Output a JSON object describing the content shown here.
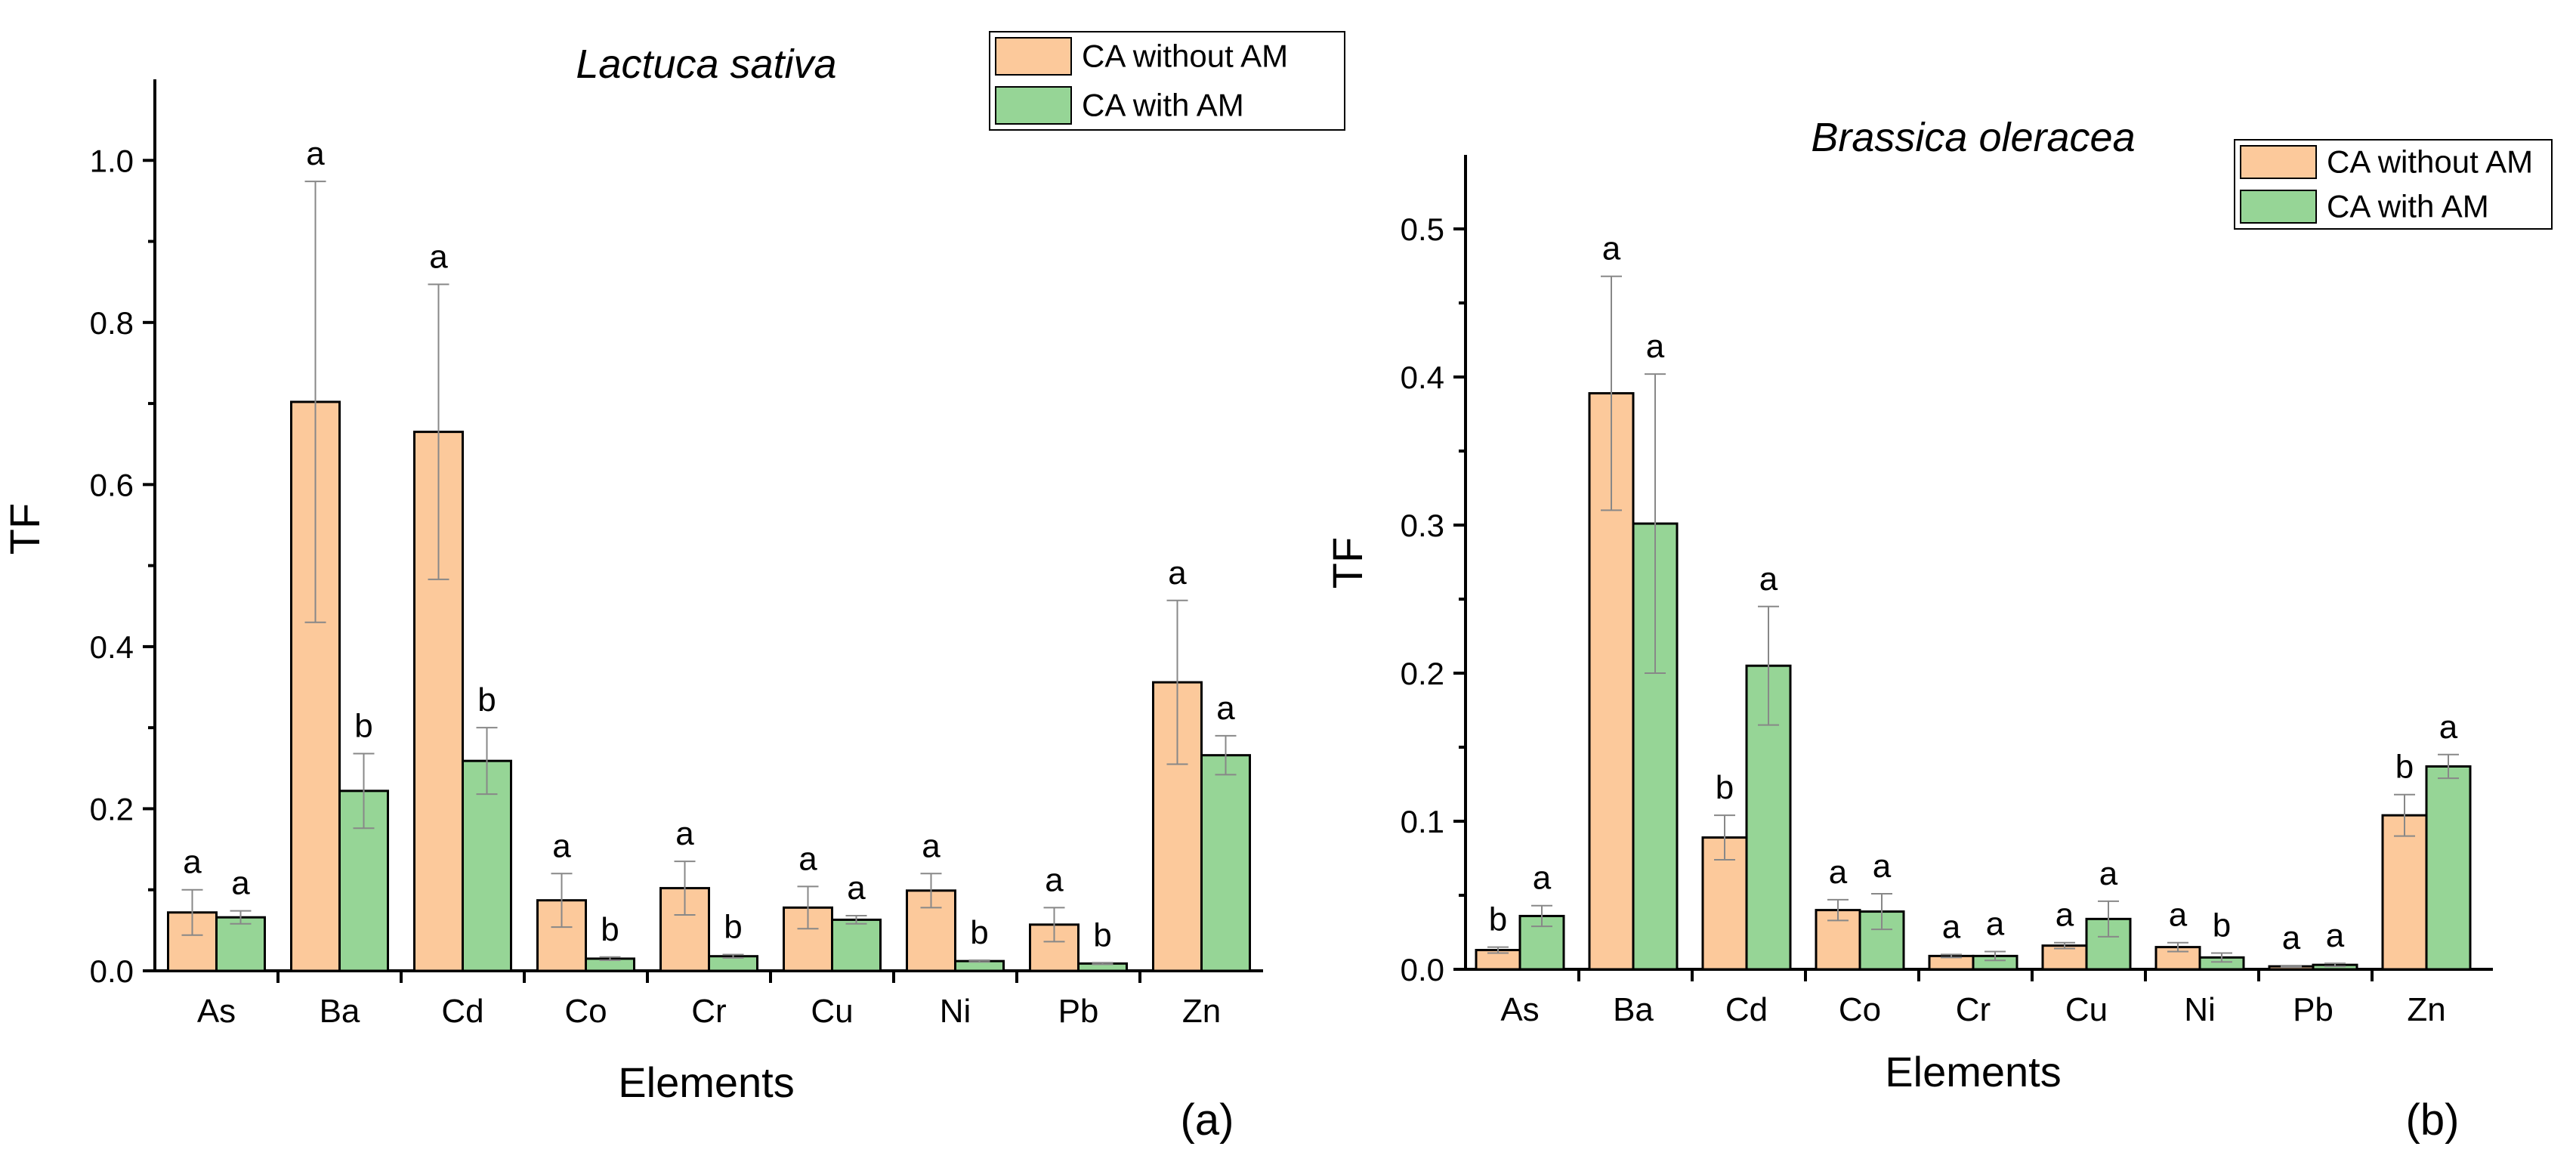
{
  "colors": {
    "without_am": "#fcc99b",
    "with_am": "#96d596",
    "bar_edge": "#000000",
    "error_bar": "#888888"
  },
  "chart_data": [
    {
      "type": "bar",
      "panel_label": "(a)",
      "title": "Lactuca sativa",
      "xlabel": "Elements",
      "ylabel": "TF",
      "categories": [
        "As",
        "Ba",
        "Cd",
        "Co",
        "Cr",
        "Cu",
        "Ni",
        "Pb",
        "Zn"
      ],
      "ylim": [
        0,
        1.1
      ],
      "yticks": [
        0.0,
        0.2,
        0.4,
        0.6,
        0.8,
        1.0
      ],
      "ytick_labels": [
        "0.0",
        "0.2",
        "0.4",
        "0.6",
        "0.8",
        "1.0"
      ],
      "legend": {
        "position": "top-right",
        "entries": [
          "CA without AM",
          "CA with AM"
        ]
      },
      "series": [
        {
          "name": "CA without AM",
          "values": [
            0.072,
            0.702,
            0.665,
            0.087,
            0.102,
            0.078,
            0.099,
            0.057,
            0.356
          ],
          "errors": [
            0.028,
            0.272,
            0.182,
            0.033,
            0.033,
            0.026,
            0.021,
            0.021,
            0.101
          ],
          "labels": [
            "a",
            "a",
            "a",
            "a",
            "a",
            "a",
            "a",
            "a",
            "a"
          ]
        },
        {
          "name": "CA with AM",
          "values": [
            0.066,
            0.222,
            0.259,
            0.015,
            0.018,
            0.063,
            0.012,
            0.009,
            0.266
          ],
          "errors": [
            0.008,
            0.046,
            0.041,
            0.002,
            0.002,
            0.005,
            0.001,
            0.001,
            0.024
          ],
          "labels": [
            "a",
            "b",
            "b",
            "b",
            "b",
            "a",
            "b",
            "b",
            "a"
          ]
        }
      ]
    },
    {
      "type": "bar",
      "panel_label": "(b)",
      "title": "Brassica oleracea",
      "xlabel": "Elements",
      "ylabel": "TF",
      "categories": [
        "As",
        "Ba",
        "Cd",
        "Co",
        "Cr",
        "Cu",
        "Ni",
        "Pb",
        "Zn"
      ],
      "ylim": [
        0,
        0.55
      ],
      "yticks": [
        0.0,
        0.1,
        0.2,
        0.3,
        0.4,
        0.5
      ],
      "ytick_labels": [
        "0.0",
        "0.1",
        "0.2",
        "0.3",
        "0.4",
        "0.5"
      ],
      "legend": {
        "position": "top-right",
        "entries": [
          "CA without AM",
          "CA with AM"
        ]
      },
      "series": [
        {
          "name": "CA without AM",
          "values": [
            0.013,
            0.389,
            0.089,
            0.04,
            0.009,
            0.016,
            0.015,
            0.002,
            0.104
          ],
          "errors": [
            0.002,
            0.079,
            0.015,
            0.007,
            0.001,
            0.002,
            0.003,
            0.0005,
            0.014
          ],
          "labels": [
            "b",
            "a",
            "b",
            "a",
            "a",
            "a",
            "a",
            "a",
            "b"
          ]
        },
        {
          "name": "CA with AM",
          "values": [
            0.036,
            0.301,
            0.205,
            0.039,
            0.009,
            0.034,
            0.008,
            0.003,
            0.137
          ],
          "errors": [
            0.007,
            0.101,
            0.04,
            0.012,
            0.003,
            0.012,
            0.003,
            0.001,
            0.008
          ],
          "labels": [
            "a",
            "a",
            "a",
            "a",
            "a",
            "a",
            "b",
            "a",
            "a"
          ]
        }
      ]
    }
  ]
}
